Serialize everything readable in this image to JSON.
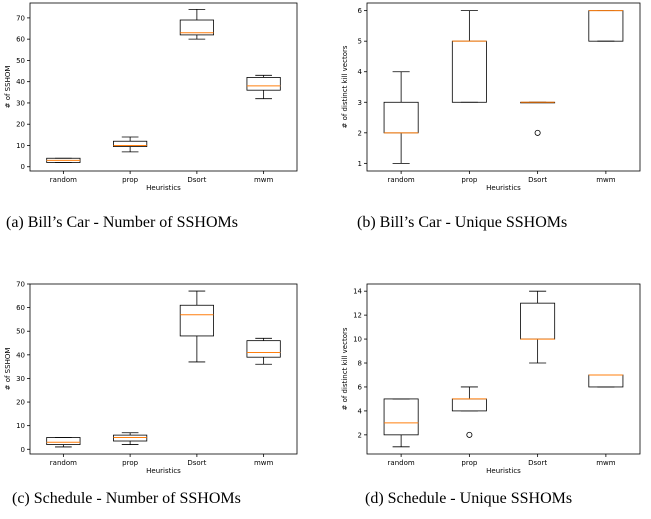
{
  "chart_data": [
    {
      "type": "box",
      "xlabel": "Heuristics",
      "ylabel": "# of SSHOM",
      "categories": [
        "random",
        "prop",
        "Dsort",
        "mwm"
      ],
      "ylim": [
        -2,
        77
      ],
      "yticks": [
        0,
        10,
        20,
        30,
        40,
        50,
        60,
        70
      ],
      "boxes": [
        {
          "whislo": 2,
          "q1": 2,
          "med": 3,
          "q3": 4,
          "whishi": 4,
          "fliers": []
        },
        {
          "whislo": 7,
          "q1": 9.5,
          "med": 10,
          "q3": 12,
          "whishi": 14,
          "fliers": []
        },
        {
          "whislo": 60,
          "q1": 62,
          "med": 63,
          "q3": 69,
          "whishi": 74,
          "fliers": []
        },
        {
          "whislo": 32,
          "q1": 36,
          "med": 38,
          "q3": 42,
          "whishi": 43,
          "fliers": []
        }
      ],
      "caption": "(a) Bill’s Car - Number of SSHOMs"
    },
    {
      "type": "box",
      "xlabel": "Heuristics",
      "ylabel": "# of distinct kill vectors",
      "categories": [
        "random",
        "prop",
        "Dsort",
        "mwm"
      ],
      "ylim": [
        0.75,
        6.25
      ],
      "yticks": [
        1,
        2,
        3,
        4,
        5,
        6
      ],
      "boxes": [
        {
          "whislo": 1,
          "q1": 2,
          "med": 2,
          "q3": 3,
          "whishi": 4,
          "fliers": []
        },
        {
          "whislo": 3,
          "q1": 3,
          "med": 5,
          "q3": 5,
          "whishi": 6,
          "fliers": []
        },
        {
          "whislo": 3,
          "q1": 3,
          "med": 3,
          "q3": 3,
          "whishi": 3,
          "fliers": [
            2
          ]
        },
        {
          "whislo": 5,
          "q1": 5,
          "med": 6,
          "q3": 6,
          "whishi": 6,
          "fliers": []
        }
      ],
      "caption": "(b) Bill’s Car - Unique SSHOMs"
    },
    {
      "type": "box",
      "xlabel": "Heuristics",
      "ylabel": "# of SSHOM",
      "categories": [
        "random",
        "prop",
        "Dsort",
        "mwm"
      ],
      "ylim": [
        -2,
        70
      ],
      "yticks": [
        0,
        10,
        20,
        30,
        40,
        50,
        60,
        70
      ],
      "boxes": [
        {
          "whislo": 1,
          "q1": 2,
          "med": 3,
          "q3": 5,
          "whishi": 5,
          "fliers": []
        },
        {
          "whislo": 2,
          "q1": 3.5,
          "med": 5,
          "q3": 6,
          "whishi": 7,
          "fliers": []
        },
        {
          "whislo": 37,
          "q1": 48,
          "med": 57,
          "q3": 61,
          "whishi": 67,
          "fliers": []
        },
        {
          "whislo": 36,
          "q1": 39,
          "med": 41,
          "q3": 46,
          "whishi": 47,
          "fliers": []
        }
      ],
      "caption": "(c) Schedule - Number of SSHOMs"
    },
    {
      "type": "box",
      "xlabel": "Heuristics",
      "ylabel": "# of distinct kill vectors",
      "categories": [
        "random",
        "prop",
        "Dsort",
        "mwm"
      ],
      "ylim": [
        0.4,
        14.6
      ],
      "yticks": [
        2,
        4,
        6,
        8,
        10,
        12,
        14
      ],
      "boxes": [
        {
          "whislo": 1,
          "q1": 2,
          "med": 3,
          "q3": 5,
          "whishi": 5,
          "fliers": []
        },
        {
          "whislo": 4,
          "q1": 4,
          "med": 5,
          "q3": 5,
          "whishi": 6,
          "fliers": [
            2
          ]
        },
        {
          "whislo": 8,
          "q1": 10,
          "med": 10,
          "q3": 13,
          "whishi": 14,
          "fliers": []
        },
        {
          "whislo": 6,
          "q1": 6,
          "med": 7,
          "q3": 7,
          "whishi": 7,
          "fliers": []
        }
      ],
      "caption": "(d) Schedule - Unique SSHOMs"
    }
  ],
  "style": {
    "median_color": "#ff7f0e",
    "box_color": "#000000"
  }
}
